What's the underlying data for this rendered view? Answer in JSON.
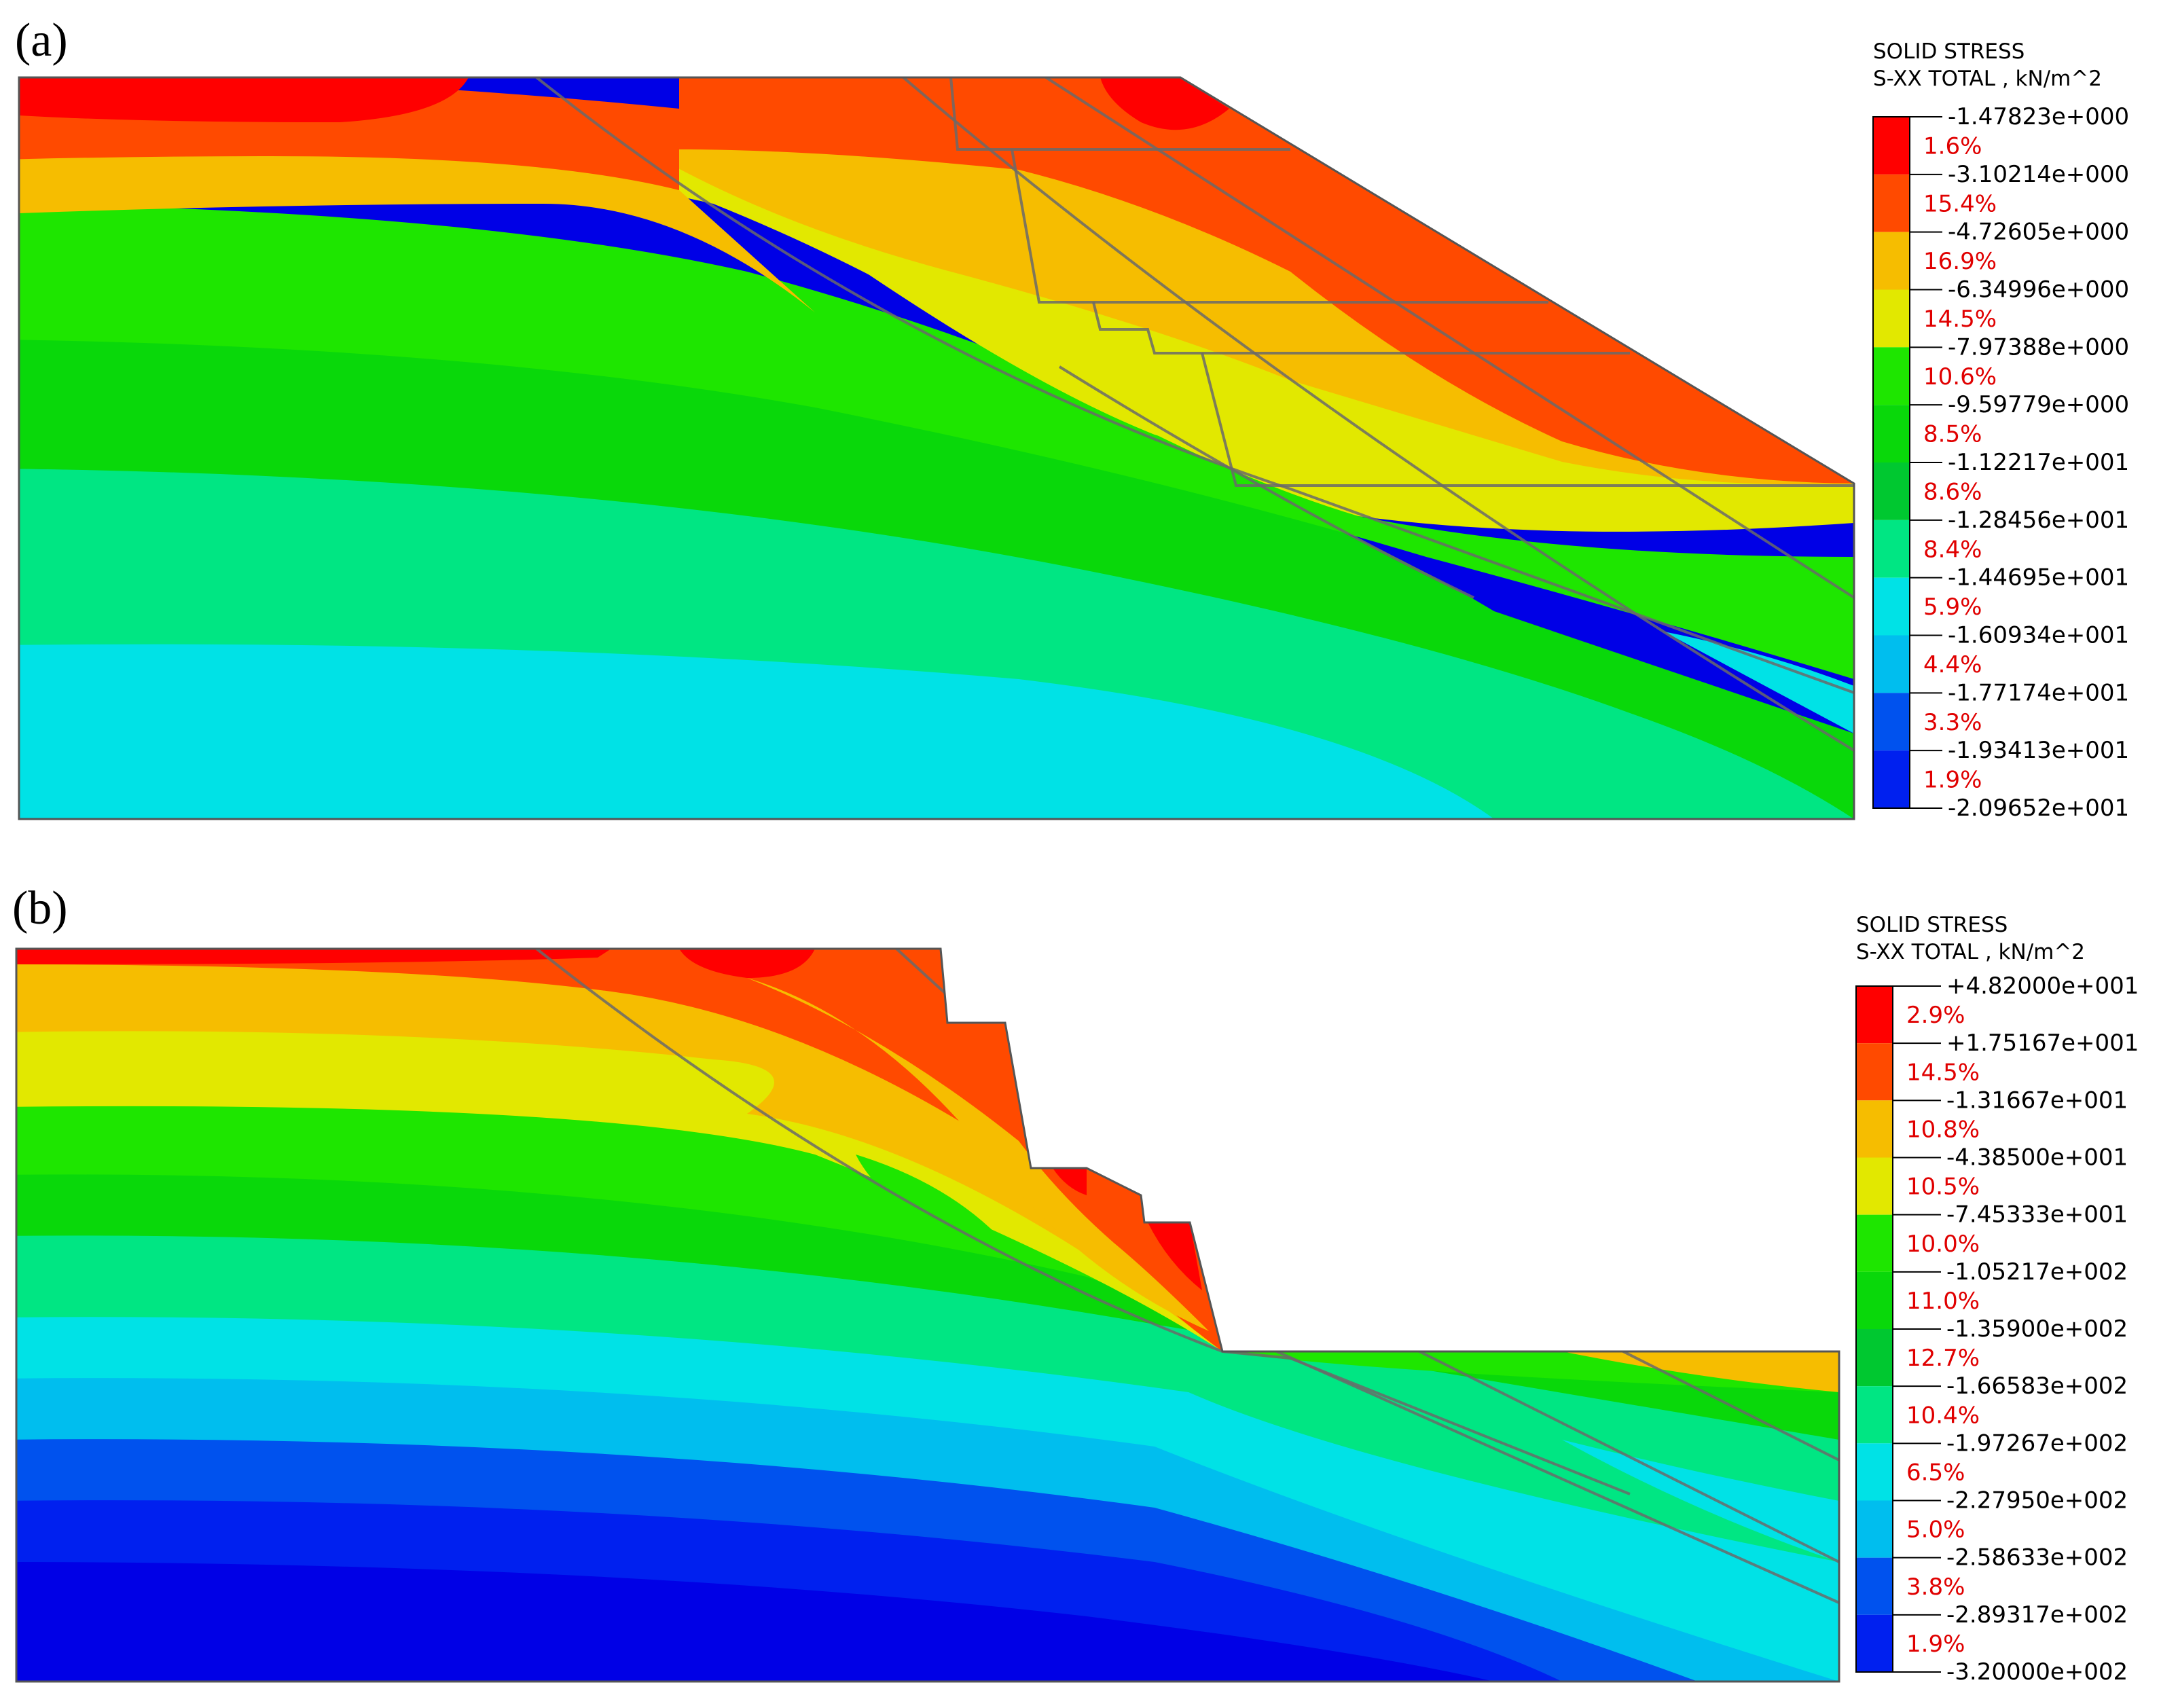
{
  "panels": [
    {
      "id": "a",
      "label": "(a)",
      "legend": {
        "title_line1": "SOLID STRESS",
        "title_line2": "S-XX TOTAL , kN/m^2",
        "values": [
          "-1.47823e+000",
          "-3.10214e+000",
          "-4.72605e+000",
          "-6.34996e+000",
          "-7.97388e+000",
          "-9.59779e+000",
          "-1.12217e+001",
          "-1.28456e+001",
          "-1.44695e+001",
          "-1.60934e+001",
          "-1.77174e+001",
          "-1.93413e+001",
          "-2.09652e+001"
        ],
        "percents": [
          "1.6%",
          "15.4%",
          "16.9%",
          "14.5%",
          "10.6%",
          "8.5%",
          "8.6%",
          "8.4%",
          "5.9%",
          "4.4%",
          "3.3%",
          "1.9%"
        ]
      }
    },
    {
      "id": "b",
      "label": "(b)",
      "legend": {
        "title_line1": "SOLID STRESS",
        "title_line2": "S-XX TOTAL , kN/m^2",
        "values": [
          "+4.82000e+001",
          "+1.75167e+001",
          "-1.31667e+001",
          "-4.38500e+001",
          "-7.45333e+001",
          "-1.05217e+002",
          "-1.35900e+002",
          "-1.66583e+002",
          "-1.97267e+002",
          "-2.27950e+002",
          "-2.58633e+002",
          "-2.89317e+002",
          "-3.20000e+002"
        ],
        "percents": [
          "2.9%",
          "14.5%",
          "10.8%",
          "10.5%",
          "10.0%",
          "11.0%",
          "12.7%",
          "10.4%",
          "6.5%",
          "5.0%",
          "3.8%",
          "1.9%"
        ]
      }
    }
  ],
  "colors": {
    "bands": [
      "#ff0000",
      "#ff4a00",
      "#f6bd00",
      "#e2e800",
      "#1ee600",
      "#09d80a",
      "#00c830",
      "#00e683",
      "#00e2e6",
      "#00beee",
      "#0052ee",
      "#0020ef",
      "#0000e6"
    ],
    "legend_pct_text": "#e00000",
    "joint_lines": "#6a6a6a"
  }
}
